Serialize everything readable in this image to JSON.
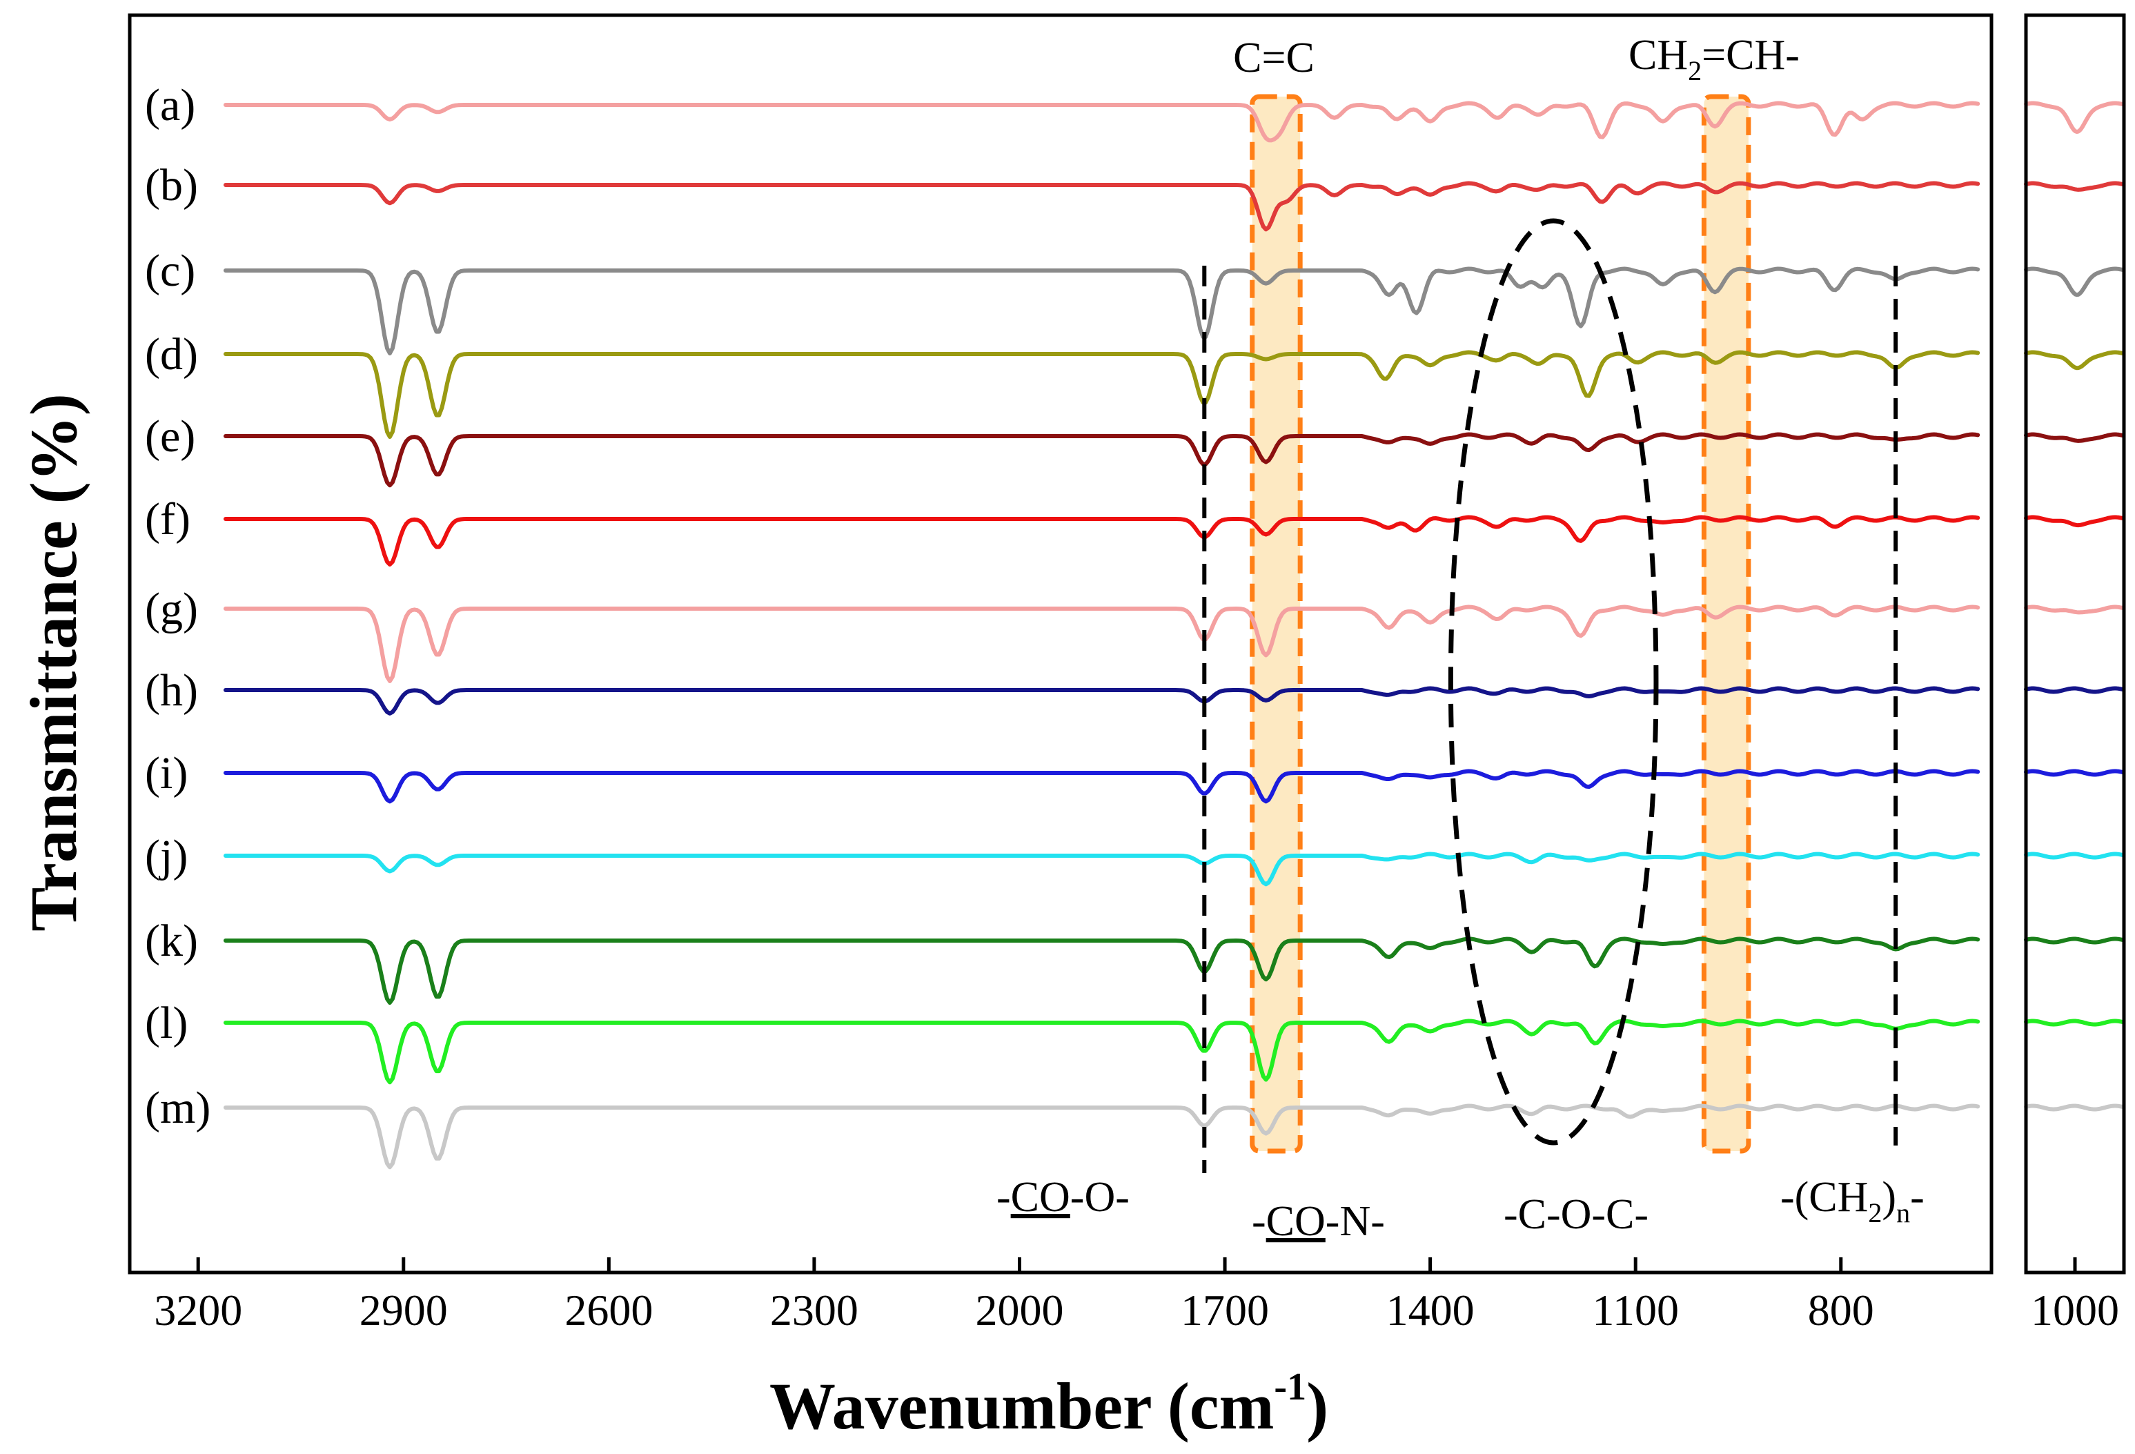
{
  "chart_data": {
    "type": "line",
    "title": "",
    "xlabel": "Wavenumber (cm",
    "xlabel_superscript": "-1",
    "xlabel_close": ")",
    "ylabel": "Transmittance (%)",
    "xlim": [
      3300,
      580
    ],
    "x_ticks": [
      3200,
      2900,
      2600,
      2300,
      2000,
      1700,
      1400,
      1100,
      800
    ],
    "inset_tick": 1000,
    "grid": false,
    "series": [
      {
        "name": "(a)",
        "color": "#f4a0a0",
        "peaks": [
          [
            2920,
            0.28
          ],
          [
            2850,
            0.14
          ],
          [
            1640,
            0.55
          ],
          [
            1620,
            0.45
          ],
          [
            1540,
            0.25
          ],
          [
            1450,
            0.3
          ],
          [
            1400,
            0.35
          ],
          [
            1300,
            0.25
          ],
          [
            1240,
            0.2
          ],
          [
            1150,
            0.6
          ],
          [
            1060,
            0.35
          ],
          [
            985,
            0.4
          ],
          [
            810,
            0.55
          ],
          [
            770,
            0.3
          ]
        ],
        "inset": [
          [
            1000,
            0.55
          ]
        ]
      },
      {
        "name": "(b)",
        "color": "#e03a3a",
        "peaks": [
          [
            2920,
            0.35
          ],
          [
            2850,
            0.12
          ],
          [
            1640,
            0.85
          ],
          [
            1610,
            0.3
          ],
          [
            1540,
            0.2
          ],
          [
            1450,
            0.2
          ],
          [
            1400,
            0.22
          ],
          [
            1300,
            0.12
          ],
          [
            1240,
            0.1
          ],
          [
            1150,
            0.3
          ],
          [
            1100,
            0.15
          ],
          [
            985,
            0.12
          ]
        ],
        "inset": [
          [
            1000,
            0.12
          ]
        ]
      },
      {
        "name": "(c)",
        "color": "#8a8a8a",
        "peaks": [
          [
            2920,
            1.6
          ],
          [
            2850,
            1.2
          ],
          [
            1730,
            1.3
          ],
          [
            1640,
            0.25
          ],
          [
            1460,
            0.5
          ],
          [
            1420,
            0.8
          ],
          [
            1270,
            0.3
          ],
          [
            1235,
            0.35
          ],
          [
            1180,
            1.1
          ],
          [
            1060,
            0.3
          ],
          [
            985,
            0.4
          ],
          [
            810,
            0.35
          ],
          [
            720,
            0.2
          ]
        ],
        "inset": [
          [
            1000,
            0.5
          ]
        ]
      },
      {
        "name": "(d)",
        "color": "#9a9a12",
        "peaks": [
          [
            2920,
            1.6
          ],
          [
            2850,
            1.2
          ],
          [
            1730,
            0.95
          ],
          [
            1640,
            0.1
          ],
          [
            1465,
            0.5
          ],
          [
            1400,
            0.25
          ],
          [
            1300,
            0.12
          ],
          [
            1240,
            0.2
          ],
          [
            1170,
            0.85
          ],
          [
            1100,
            0.15
          ],
          [
            985,
            0.15
          ],
          [
            720,
            0.3
          ]
        ],
        "inset": [
          [
            1000,
            0.3
          ]
        ]
      },
      {
        "name": "(e)",
        "color": "#8b1010",
        "peaks": [
          [
            2920,
            0.95
          ],
          [
            2850,
            0.75
          ],
          [
            1730,
            0.55
          ],
          [
            1640,
            0.5
          ],
          [
            1460,
            0.15
          ],
          [
            1400,
            0.18
          ],
          [
            1250,
            0.12
          ],
          [
            1170,
            0.3
          ],
          [
            1100,
            0.1
          ],
          [
            720,
            0.1
          ]
        ],
        "inset": [
          [
            1000,
            0.12
          ]
        ]
      },
      {
        "name": "(f)",
        "color": "#ee1111",
        "peaks": [
          [
            2920,
            0.88
          ],
          [
            2850,
            0.55
          ],
          [
            1730,
            0.35
          ],
          [
            1640,
            0.3
          ],
          [
            1460,
            0.2
          ],
          [
            1420,
            0.2
          ],
          [
            1300,
            0.15
          ],
          [
            1180,
            0.45
          ],
          [
            1060,
            0.1
          ],
          [
            810,
            0.12
          ]
        ],
        "inset": [
          [
            1000,
            0.15
          ]
        ]
      },
      {
        "name": "(g)",
        "color": "#f4a0a0",
        "peaks": [
          [
            2920,
            1.4
          ],
          [
            2850,
            0.9
          ],
          [
            1730,
            0.6
          ],
          [
            1640,
            0.9
          ],
          [
            1460,
            0.4
          ],
          [
            1400,
            0.3
          ],
          [
            1300,
            0.2
          ],
          [
            1180,
            0.55
          ],
          [
            1060,
            0.15
          ],
          [
            985,
            0.15
          ],
          [
            810,
            0.1
          ]
        ],
        "inset": [
          [
            1000,
            0.1
          ]
        ]
      },
      {
        "name": "(h)",
        "color": "#14148a",
        "peaks": [
          [
            2920,
            0.45
          ],
          [
            2850,
            0.25
          ],
          [
            1730,
            0.22
          ],
          [
            1640,
            0.2
          ],
          [
            1460,
            0.12
          ],
          [
            1300,
            0.06
          ],
          [
            1170,
            0.15
          ],
          [
            1060,
            0.06
          ]
        ],
        "inset": []
      },
      {
        "name": "(i)",
        "color": "#1c1cdd",
        "peaks": [
          [
            2920,
            0.55
          ],
          [
            2850,
            0.32
          ],
          [
            1730,
            0.4
          ],
          [
            1640,
            0.55
          ],
          [
            1460,
            0.15
          ],
          [
            1400,
            0.12
          ],
          [
            1300,
            0.1
          ],
          [
            1170,
            0.3
          ],
          [
            1060,
            0.06
          ]
        ],
        "inset": []
      },
      {
        "name": "(j)",
        "color": "#22e2f0",
        "peaks": [
          [
            2920,
            0.3
          ],
          [
            2850,
            0.18
          ],
          [
            1730,
            0.15
          ],
          [
            1640,
            0.55
          ],
          [
            1460,
            0.1
          ],
          [
            1250,
            0.1
          ],
          [
            1170,
            0.12
          ],
          [
            1060,
            0.06
          ]
        ],
        "inset": []
      },
      {
        "name": "(k)",
        "color": "#1a801a",
        "peaks": [
          [
            2920,
            1.2
          ],
          [
            2850,
            1.1
          ],
          [
            1730,
            0.6
          ],
          [
            1640,
            0.75
          ],
          [
            1460,
            0.35
          ],
          [
            1400,
            0.18
          ],
          [
            1250,
            0.2
          ],
          [
            1160,
            0.5
          ],
          [
            1060,
            0.1
          ],
          [
            720,
            0.2
          ]
        ],
        "inset": []
      },
      {
        "name": "(l)",
        "color": "#22ee22",
        "peaks": [
          [
            2920,
            1.15
          ],
          [
            2850,
            0.95
          ],
          [
            1730,
            0.55
          ],
          [
            1640,
            1.1
          ],
          [
            1460,
            0.4
          ],
          [
            1400,
            0.2
          ],
          [
            1250,
            0.2
          ],
          [
            1160,
            0.4
          ],
          [
            1060,
            0.1
          ],
          [
            720,
            0.15
          ]
        ],
        "inset": []
      },
      {
        "name": "(m)",
        "color": "#c8c8c8",
        "peaks": [
          [
            2920,
            1.15
          ],
          [
            2850,
            1.0
          ],
          [
            1730,
            0.35
          ],
          [
            1640,
            0.5
          ],
          [
            1460,
            0.18
          ],
          [
            1400,
            0.15
          ],
          [
            1250,
            0.1
          ],
          [
            1110,
            0.2
          ],
          [
            1060,
            0.1
          ]
        ],
        "inset": []
      }
    ],
    "annotations": {
      "cc_label": "C=C",
      "vinyl_label_pre": "CH",
      "vinyl_label_sub": "2",
      "vinyl_label_post": "=CH-",
      "ester_label_pre": "-",
      "ester_label_ul": "CO",
      "ester_label_post": "-O-",
      "amide_label_pre": "-",
      "amide_label_ul": "CO",
      "amide_label_post": "-N-",
      "ether_label": "-C-O-C-",
      "ch2n_label_pre": "-(CH",
      "ch2n_label_sub": "2",
      "ch2n_label_mid": ")",
      "ch2n_label_sub2": "n",
      "ch2n_label_post": "-",
      "ester_line_x": 1730,
      "ch2n_line_x": 720,
      "cc_band": [
        1660,
        1590
      ],
      "vinyl_band": [
        1000,
        935
      ],
      "ether_ellipse_center_x": 1220,
      "ether_ellipse_width": 300
    },
    "highlight_color": "#fde9c2",
    "highlight_border_color": "#ff7f16"
  }
}
